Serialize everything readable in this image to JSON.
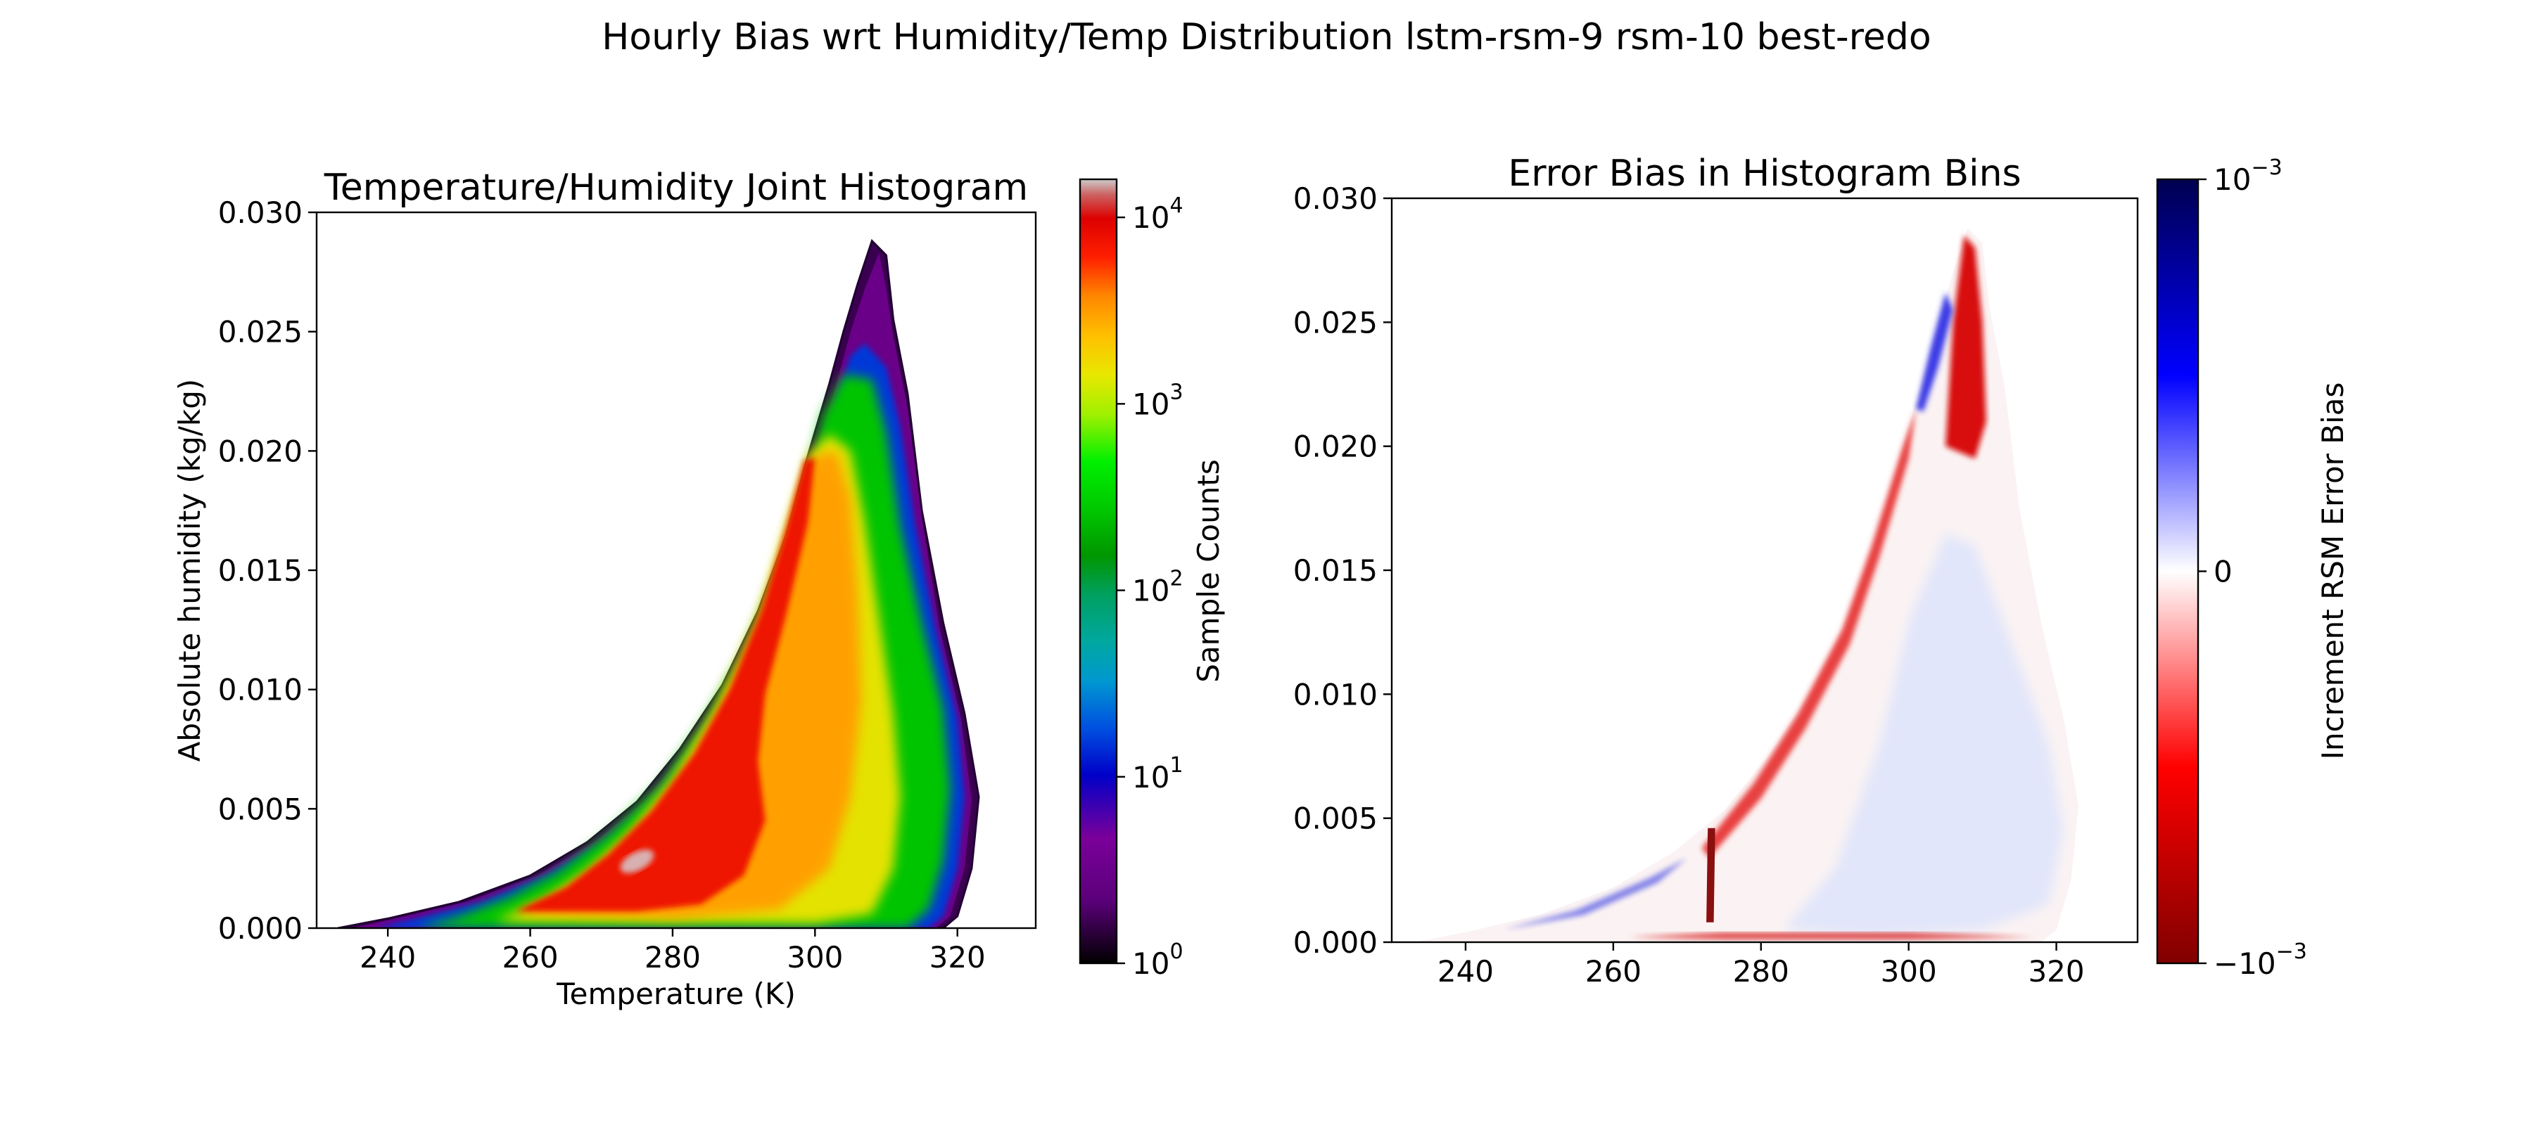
{
  "figure": {
    "suptitle": "Hourly Bias wrt Humidity/Temp Distribution lstm-rsm-9 rsm-10 best-redo"
  },
  "chart_data": [
    {
      "type": "heatmap",
      "title": "Temperature/Humidity Joint Histogram",
      "xlabel": "Temperature (K)",
      "ylabel": "Absolute humidity (kg/kg)",
      "xlim": [
        230,
        331
      ],
      "ylim": [
        0.0,
        0.03
      ],
      "x_ticks": [
        240,
        260,
        280,
        300,
        320
      ],
      "x_tick_labels": [
        "240",
        "260",
        "280",
        "300",
        "320"
      ],
      "y_ticks": [
        0.0,
        0.005,
        0.01,
        0.015,
        0.02,
        0.025,
        0.03
      ],
      "y_tick_labels": [
        "0.000",
        "0.005",
        "0.010",
        "0.015",
        "0.020",
        "0.025",
        "0.030"
      ],
      "colorbar": {
        "label": "Sample Counts",
        "scale": "log",
        "range": [
          1,
          16000
        ],
        "colormap": "nipy_spectral",
        "ticks": [
          1,
          10,
          100,
          1000,
          10000
        ],
        "tick_labels": [
          {
            "base": "10",
            "exp": "0"
          },
          {
            "base": "10",
            "exp": "1"
          },
          {
            "base": "10",
            "exp": "2"
          },
          {
            "base": "10",
            "exp": "3"
          },
          {
            "base": "10",
            "exp": "4"
          }
        ]
      },
      "distribution": {
        "peak": {
          "temperature": 275,
          "humidity": 0.0028,
          "count": 16000
        },
        "max_humidity": {
          "temperature": 309,
          "humidity": 0.0288
        },
        "temperature_extent": [
          233,
          323
        ]
      }
    },
    {
      "type": "heatmap",
      "title": "Error Bias in Histogram Bins",
      "xlabel": "",
      "ylabel": "",
      "xlim": [
        230,
        331
      ],
      "ylim": [
        0.0,
        0.03
      ],
      "x_ticks": [
        240,
        260,
        280,
        300,
        320
      ],
      "x_tick_labels": [
        "240",
        "260",
        "280",
        "300",
        "320"
      ],
      "y_ticks": [
        0.0,
        0.005,
        0.01,
        0.015,
        0.02,
        0.025,
        0.03
      ],
      "y_tick_labels": [
        "0.000",
        "0.005",
        "0.010",
        "0.015",
        "0.020",
        "0.025",
        "0.030"
      ],
      "colorbar": {
        "label": "Increment RSM Error Bias",
        "scale": "linear",
        "range": [
          -0.001,
          0.001
        ],
        "colormap": "seismic_r",
        "ticks": [
          0.001,
          0,
          -0.001
        ],
        "tick_labels": [
          {
            "base": "10",
            "exp": "−3",
            "sign": ""
          },
          {
            "base": "0",
            "exp": "",
            "sign": ""
          },
          {
            "base": "10",
            "exp": "−3",
            "sign": "−"
          }
        ]
      }
    }
  ]
}
